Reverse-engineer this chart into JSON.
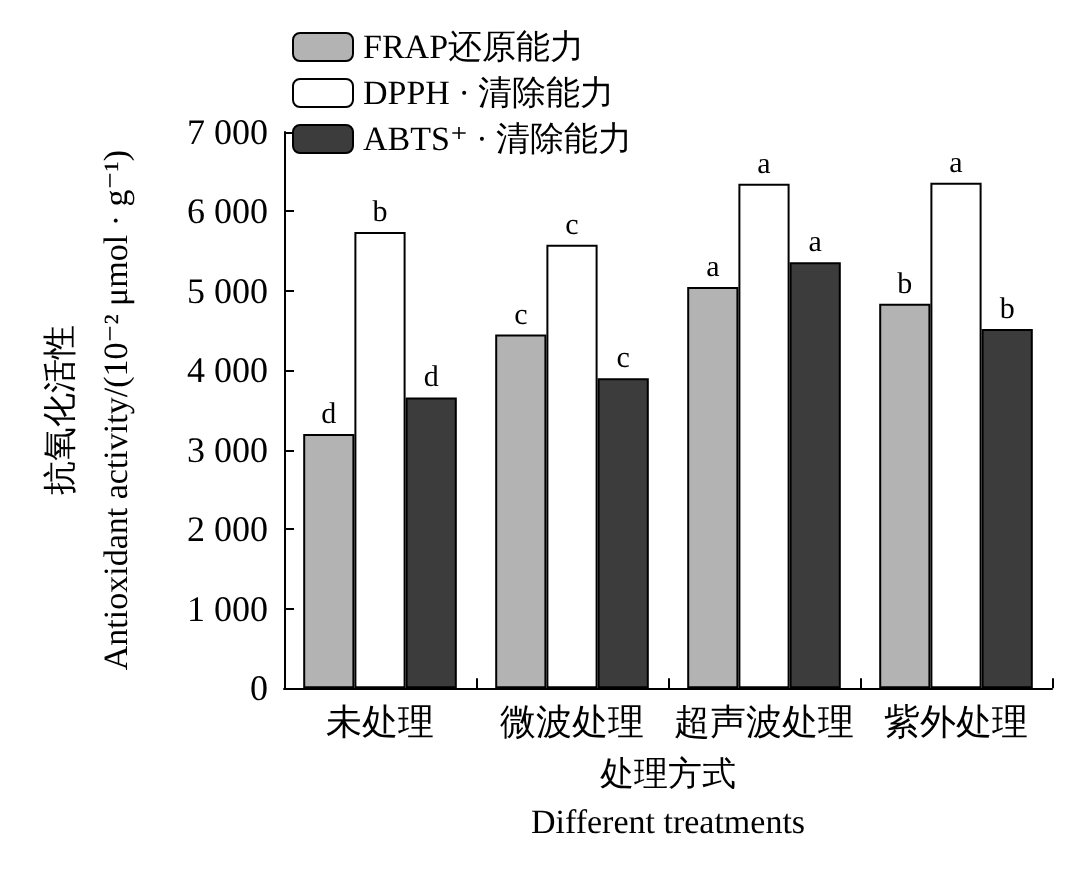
{
  "chart_data": {
    "type": "bar",
    "categories": [
      "未处理",
      "微波处理",
      "超声波处理",
      "紫外处理"
    ],
    "xlabel": "处理方式\nDifferent treatments",
    "ylabel": "抗氧化活性\nAntioxidant activity/(10⁻² μmol · g⁻¹)",
    "ylim": [
      0,
      7000
    ],
    "yticks": [
      0,
      {
        "value": 1000,
        "label": "1 000"
      },
      {
        "value": 2000,
        "label": "2 000"
      },
      {
        "value": 3000,
        "label": "3 000"
      },
      {
        "value": 4000,
        "label": "4 000"
      },
      {
        "value": 5000,
        "label": "5 000"
      },
      {
        "value": 6000,
        "label": "6 000"
      },
      {
        "value": 7000,
        "label": "7 000"
      }
    ],
    "series": [
      {
        "name": "FRAP还原能力",
        "color": "#b3b3b3",
        "values": [
          3200,
          4450,
          5050,
          4840
        ],
        "value_labels": [
          "d",
          "c",
          "a",
          "b"
        ]
      },
      {
        "name": "DPPH · 清除能力",
        "color": "#ffffff",
        "values": [
          5740,
          5580,
          6350,
          6360
        ],
        "value_labels": [
          "b",
          "c",
          "a",
          "a"
        ]
      },
      {
        "name": "ABTS⁺ · 清除能力",
        "color": "#3c3c3c",
        "values": [
          3660,
          3900,
          5360,
          4520
        ],
        "value_labels": [
          "d",
          "c",
          "a",
          "b"
        ]
      }
    ],
    "grid": false,
    "legend": "top left"
  }
}
